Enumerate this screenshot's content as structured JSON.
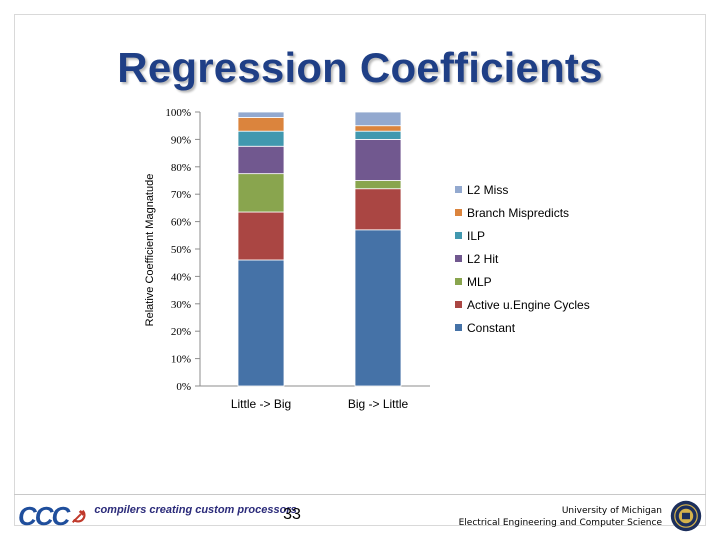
{
  "slide": {
    "title": "Regression Coefficients",
    "page_number": "33",
    "footer_logo_text": "CCC",
    "footer_tagline": "compilers creating custom processors",
    "university_line1": "University of Michigan",
    "university_line2": "Electrical Engineering and Computer Science",
    "colors": {
      "title": "#1f3f86",
      "logo": "#1f4e9c"
    }
  },
  "chart_data": {
    "type": "stacked-bar",
    "title": "",
    "ylabel": "Relative Coefficient Magnatude",
    "xlabel": "",
    "ylim": [
      0,
      100
    ],
    "y_ticks": [
      "0%",
      "10%",
      "20%",
      "30%",
      "40%",
      "50%",
      "60%",
      "70%",
      "80%",
      "90%",
      "100%"
    ],
    "y_tick_values": [
      0,
      10,
      20,
      30,
      40,
      50,
      60,
      70,
      80,
      90,
      100
    ],
    "categories": [
      "Little -> Big",
      "Big -> Little"
    ],
    "legend_position": "right",
    "series": [
      {
        "name": "Constant",
        "color": "#4572a7",
        "values": [
          46,
          57
        ]
      },
      {
        "name": "Active u.Engine Cycles",
        "color": "#aa4643",
        "values": [
          17.5,
          15
        ]
      },
      {
        "name": "MLP",
        "color": "#89a54e",
        "values": [
          14,
          3
        ]
      },
      {
        "name": "L2 Hit",
        "color": "#71588f",
        "values": [
          10,
          15
        ]
      },
      {
        "name": "ILP",
        "color": "#4198af",
        "values": [
          5.5,
          3
        ]
      },
      {
        "name": "Branch Mispredicts",
        "color": "#db843d",
        "values": [
          5,
          2
        ]
      },
      {
        "name": "L2 Miss",
        "color": "#93a9cf",
        "values": [
          2,
          5
        ]
      }
    ],
    "legend_order": [
      "L2 Miss",
      "Branch Mispredicts",
      "ILP",
      "L2 Hit",
      "MLP",
      "Active u.Engine Cycles",
      "Constant"
    ]
  }
}
